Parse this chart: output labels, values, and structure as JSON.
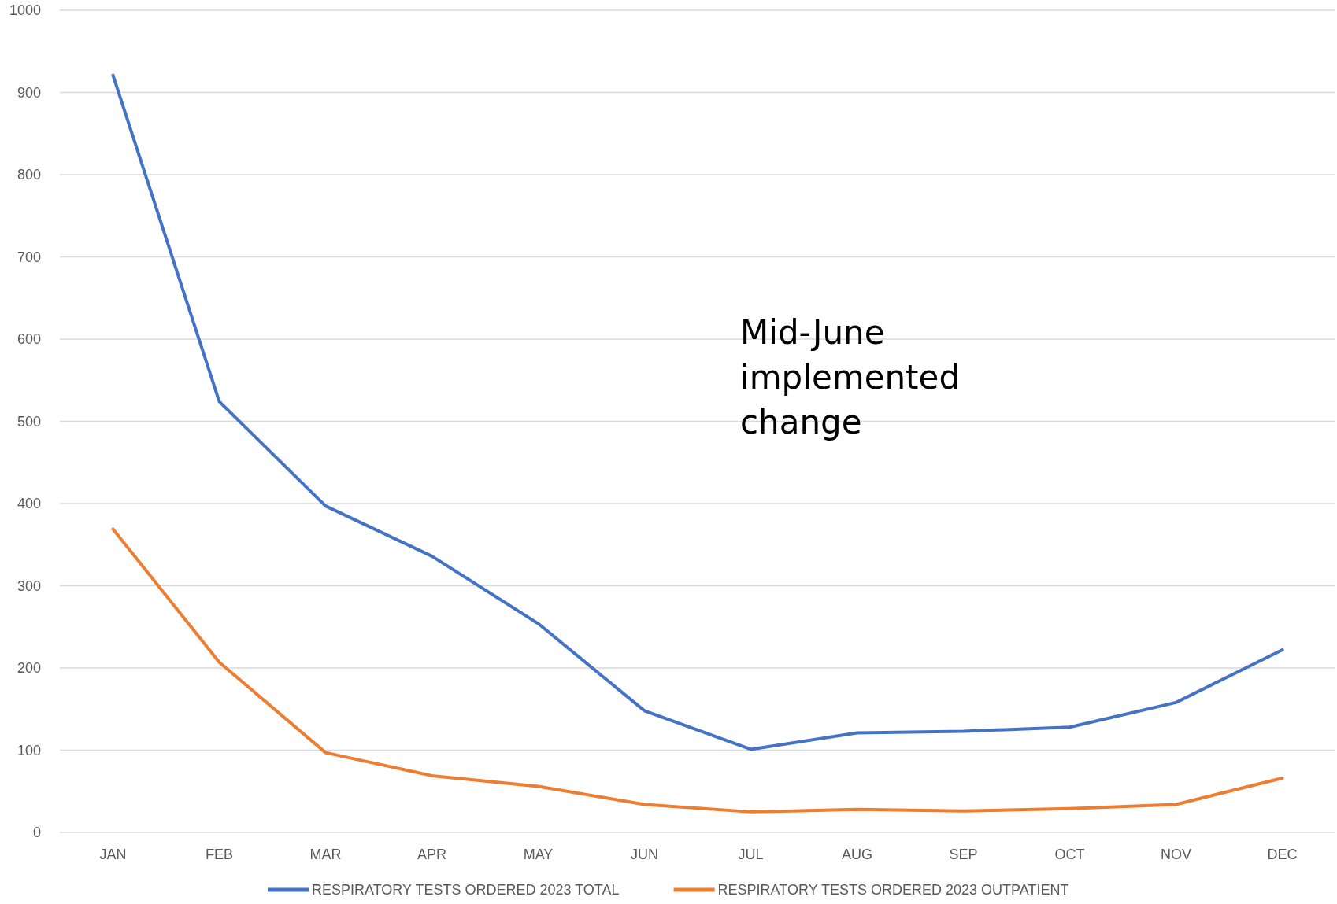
{
  "chart_data": {
    "type": "line",
    "categories": [
      "JAN",
      "FEB",
      "MAR",
      "APR",
      "MAY",
      "JUN",
      "JUL",
      "AUG",
      "SEP",
      "OCT",
      "NOV",
      "DEC"
    ],
    "series": [
      {
        "name": "RESPIRATORY TESTS ORDERED 2023 TOTAL",
        "color": "#4472c4",
        "values": [
          921,
          524,
          397,
          336,
          254,
          148,
          101,
          121,
          123,
          128,
          158,
          222
        ]
      },
      {
        "name": "RESPIRATORY TESTS ORDERED 2023 OUTPATIENT",
        "color": "#ed7d31",
        "values": [
          369,
          207,
          97,
          69,
          56,
          34,
          25,
          28,
          26,
          29,
          34,
          66
        ]
      }
    ],
    "ylim": [
      0,
      1000
    ],
    "yticks": [
      0,
      100,
      200,
      300,
      400,
      500,
      600,
      700,
      800,
      900,
      1000
    ],
    "grid": "y",
    "legend": "bottom",
    "marker": "none",
    "line_style": "solid",
    "annotations": [
      "Mid-June implemented change"
    ]
  }
}
